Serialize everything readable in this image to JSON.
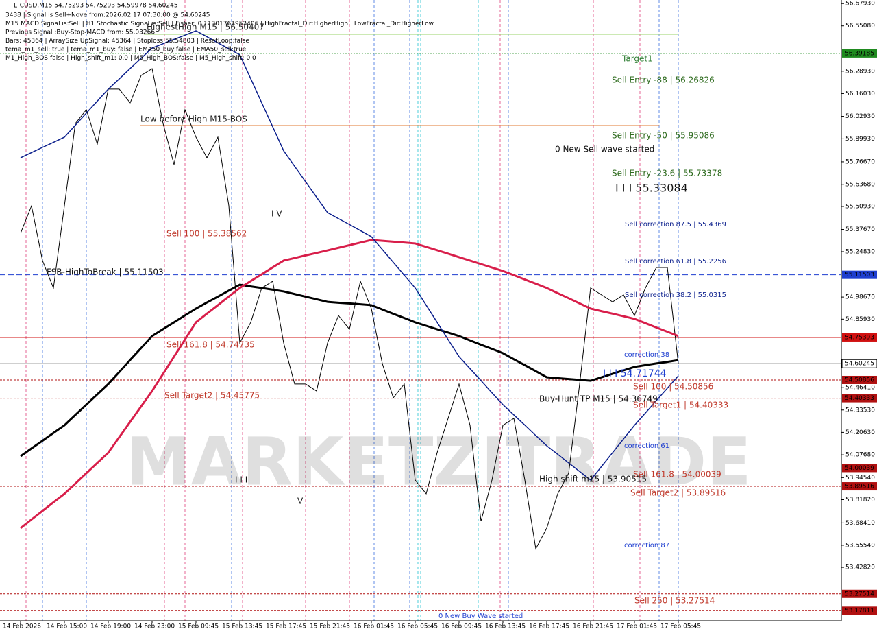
{
  "chart_data": {
    "type": "line",
    "title": "LTCUSD,M15  54.75293 54.75293 54.59978 54.60245",
    "info_lines": [
      "3438 | Signal is Sell+Nove from:2026.02.17 07:30:00 @ 54.60245",
      "M15 MACD Signal is:Sell | H1 Stochastic Signal is:Sell | Fisher: 0.11301761952406 | HighFractal_Dir:HigherHigh | LowFractal_Dir:HigherLow",
      "Previous Signal :Buy-Stop-MACD from: 55.03266",
      "Bars: 45364 | ArraySize UpSignal: 45364 | Stoploss:55.54803 | ResetLoop:false",
      "tema_m1_sell: true | tema_m1_buy: false | EMA50_buy:false | EMA50_sell:true",
      "M1_High_BOS:false | High_shift_m1: 0.0 | M5_High_BOS:false | M5_High_shift: 0.0"
    ],
    "watermark": "MARKETZITRADE",
    "categories": [
      "14 Feb 2026",
      null,
      null,
      null,
      "14 Feb 15:00",
      null,
      null,
      null,
      "14 Feb 19:00",
      null,
      null,
      null,
      "14 Feb 23:00",
      null,
      null,
      null,
      "15 Feb 09:45",
      null,
      null,
      null,
      "15 Feb 13:45",
      null,
      null,
      null,
      "15 Feb 17:45",
      null,
      null,
      null,
      "15 Feb 21:45",
      null,
      null,
      null,
      "16 Feb 01:45",
      null,
      null,
      null,
      "16 Feb 05:45",
      null,
      null,
      null,
      "16 Feb 09:45",
      null,
      null,
      null,
      "16 Feb 13:45",
      null,
      null,
      null,
      "16 Feb 17:45",
      null,
      null,
      null,
      "16 Feb 21:45",
      null,
      null,
      null,
      "17 Feb 01:45",
      null,
      null,
      null,
      "17 Feb 05:45"
    ],
    "series": [
      {
        "name": "Price",
        "color": "#000000",
        "values": [
          55.355,
          55.513,
          55.197,
          55.039,
          55.513,
          55.988,
          56.067,
          55.869,
          56.186,
          56.186,
          56.107,
          56.265,
          56.304,
          55.988,
          55.751,
          56.067,
          55.909,
          55.79,
          55.909,
          55.513,
          54.722,
          54.841,
          55.039,
          55.078,
          54.722,
          54.485,
          54.485,
          54.445,
          54.722,
          54.88,
          54.801,
          55.078,
          54.92,
          54.603,
          54.406,
          54.485,
          53.931,
          53.852,
          54.089,
          54.287,
          54.485,
          54.247,
          53.694,
          53.931,
          54.247,
          54.287,
          53.931,
          53.535,
          53.654,
          53.852,
          53.971,
          54.485,
          55.039,
          54.999,
          54.959,
          54.999,
          54.88,
          55.039,
          55.157,
          55.157,
          54.603
        ]
      },
      {
        "name": "MA black",
        "color": "#000000",
        "values": [
          54.069,
          54.114,
          54.158,
          54.203,
          54.247,
          54.307,
          54.366,
          54.426,
          54.485,
          54.554,
          54.624,
          54.693,
          54.762,
          54.802,
          54.841,
          54.881,
          54.92,
          54.955,
          54.989,
          55.024,
          55.058,
          55.048,
          55.039,
          55.029,
          55.019,
          55.004,
          54.989,
          54.974,
          54.959,
          54.954,
          54.95,
          54.945,
          54.94,
          54.915,
          54.89,
          54.866,
          54.841,
          54.821,
          54.801,
          54.782,
          54.762,
          54.737,
          54.712,
          54.688,
          54.663,
          54.628,
          54.594,
          54.559,
          54.524,
          54.519,
          54.514,
          54.509,
          54.504,
          54.524,
          54.544,
          54.564,
          54.584,
          54.594,
          54.604,
          54.613,
          54.623
        ]
      },
      {
        "name": "MA red",
        "color": "#d81e4a",
        "values": [
          53.654,
          53.704,
          53.753,
          53.803,
          53.852,
          53.911,
          53.971,
          54.03,
          54.089,
          54.178,
          54.267,
          54.356,
          54.445,
          54.544,
          54.643,
          54.742,
          54.841,
          54.891,
          54.94,
          54.99,
          55.039,
          55.079,
          55.118,
          55.158,
          55.197,
          55.212,
          55.227,
          55.241,
          55.256,
          55.271,
          55.286,
          55.301,
          55.316,
          55.311,
          55.306,
          55.301,
          55.296,
          55.276,
          55.257,
          55.237,
          55.217,
          55.197,
          55.177,
          55.157,
          55.137,
          55.113,
          55.088,
          55.064,
          55.039,
          55.009,
          54.98,
          54.95,
          54.92,
          54.905,
          54.891,
          54.876,
          54.861,
          54.836,
          54.811,
          54.787,
          54.762
        ]
      },
      {
        "name": "MA blue",
        "color": "#0a1e8c",
        "values": [
          55.79,
          55.82,
          55.85,
          55.879,
          55.909,
          55.978,
          56.048,
          56.117,
          56.186,
          56.245,
          56.305,
          56.364,
          56.423,
          56.448,
          56.473,
          56.497,
          56.522,
          56.488,
          56.453,
          56.419,
          56.384,
          56.246,
          56.107,
          55.969,
          55.83,
          55.741,
          55.652,
          55.563,
          55.474,
          55.439,
          55.405,
          55.37,
          55.335,
          55.261,
          55.187,
          55.113,
          55.039,
          54.94,
          54.841,
          54.742,
          54.643,
          54.574,
          54.505,
          54.435,
          54.366,
          54.307,
          54.248,
          54.188,
          54.129,
          54.08,
          54.03,
          53.981,
          53.931,
          54.01,
          54.089,
          54.168,
          54.247,
          54.318,
          54.39,
          54.461,
          54.532
        ]
      }
    ],
    "ylim": [
      53.12,
      56.7
    ],
    "yticks": [
      {
        "value": 56.6793,
        "label": "56.67930"
      },
      {
        "value": 56.5508,
        "label": "56.55080"
      },
      {
        "value": 56.2893,
        "label": "56.28930"
      },
      {
        "value": 56.1603,
        "label": "56.16030"
      },
      {
        "value": 56.0293,
        "label": "56.02930"
      },
      {
        "value": 55.8993,
        "label": "55.89930"
      },
      {
        "value": 55.7667,
        "label": "55.76670"
      },
      {
        "value": 55.6368,
        "label": "55.63680"
      },
      {
        "value": 55.5093,
        "label": "55.50930"
      },
      {
        "value": 55.3767,
        "label": "55.37670"
      },
      {
        "value": 55.2483,
        "label": "55.24830"
      },
      {
        "value": 54.9867,
        "label": "54.98670"
      },
      {
        "value": 54.8593,
        "label": "54.85930"
      },
      {
        "value": 54.4641,
        "label": "54.46410"
      },
      {
        "value": 54.3353,
        "label": "54.33530"
      },
      {
        "value": 54.2063,
        "label": "54.20630"
      },
      {
        "value": 54.0768,
        "label": "54.07680"
      },
      {
        "value": 53.9454,
        "label": "53.94540"
      },
      {
        "value": 53.8182,
        "label": "53.81820"
      },
      {
        "value": 53.6841,
        "label": "53.68410"
      },
      {
        "value": 53.5554,
        "label": "53.55540"
      },
      {
        "value": 53.4282,
        "label": "53.42820"
      }
    ],
    "levels": [
      {
        "value": 56.39185,
        "color": "#1f8a1f",
        "dash": "2 2"
      },
      {
        "value": 55.11503,
        "color": "#1f3fd0",
        "dash": "8 4"
      },
      {
        "value": 54.75393,
        "color": "#d01010",
        "dash": "none"
      },
      {
        "value": 54.60245,
        "color": "#404040",
        "dash": "none"
      },
      {
        "value": 54.50856,
        "color": "#b01010",
        "dash": "3 2"
      },
      {
        "value": 54.40333,
        "color": "#b01010",
        "dash": "3 2"
      },
      {
        "value": 54.00039,
        "color": "#b01010",
        "dash": "3 2"
      },
      {
        "value": 53.89516,
        "color": "#b01010",
        "dash": "3 2"
      },
      {
        "value": 53.27514,
        "color": "#b01010",
        "dash": "3 2"
      },
      {
        "value": 53.17811,
        "color": "#b01010",
        "dash": "3 2"
      }
    ],
    "annotations": [
      {
        "text": "HighestHigh  M15 | 56.50407",
        "color": "#222222"
      },
      {
        "text": "Target1",
        "color": "#2e7d32"
      },
      {
        "text": "Sell Entry -88 | 56.26826",
        "color": "#2e6b1e"
      },
      {
        "text": "Low before High  M15-BOS",
        "color": "#222222"
      },
      {
        "text": "Sell Entry -50 | 55.95086",
        "color": "#2e6b1e"
      },
      {
        "text": "0 New Sell wave started",
        "color": "#111111"
      },
      {
        "text": "Sell Entry -23.6 | 55.73378",
        "color": "#2e6b1e"
      },
      {
        "text": "I I I 55.33084",
        "color": "#111111"
      },
      {
        "text": "Sell correction 87.5 | 55.4369",
        "color": "#0a1e8c"
      },
      {
        "text": "Sell 100 | 55.38562",
        "color": "#c0392b"
      },
      {
        "text": "I V",
        "color": "#111111"
      },
      {
        "text": "Sell correction 61.8 | 55.2256",
        "color": "#0a1e8c"
      },
      {
        "text": "FSB-HighToBreak | 55.11503",
        "color": "#111111"
      },
      {
        "text": "Sell correction 38.2 | 55.0315",
        "color": "#0a1e8c"
      },
      {
        "text": "Sell 161.8 | 54.74735",
        "color": "#c0392b"
      },
      {
        "text": "correction 38",
        "color": "#1f3fd0"
      },
      {
        "text": "I I I 54.71744",
        "color": "#1f3fd0"
      },
      {
        "text": "Sell 100 | 54.50856",
        "color": "#c0392b"
      },
      {
        "text": "Sell Target2 | 54.45775",
        "color": "#c0392b"
      },
      {
        "text": "Buy-Hunt TP M15 | 54.36749",
        "color": "#111111"
      },
      {
        "text": "Sell Target1 | 54.40333",
        "color": "#c0392b"
      },
      {
        "text": "correction 61",
        "color": "#1f3fd0"
      },
      {
        "text": "I I I",
        "color": "#111111"
      },
      {
        "text": "Sell 161.8 | 54.00039",
        "color": "#c0392b"
      },
      {
        "text": "High shift m15 | 53.90515",
        "color": "#111111"
      },
      {
        "text": "Sell Target2 | 53.89516",
        "color": "#c0392b"
      },
      {
        "text": "V",
        "color": "#111111"
      },
      {
        "text": "correction 87",
        "color": "#1f3fd0"
      },
      {
        "text": "Sell 250 | 53.27514",
        "color": "#c0392b"
      },
      {
        "text": "0 New Buy Wave started",
        "color": "#1f3fd0"
      }
    ],
    "grid": false
  }
}
